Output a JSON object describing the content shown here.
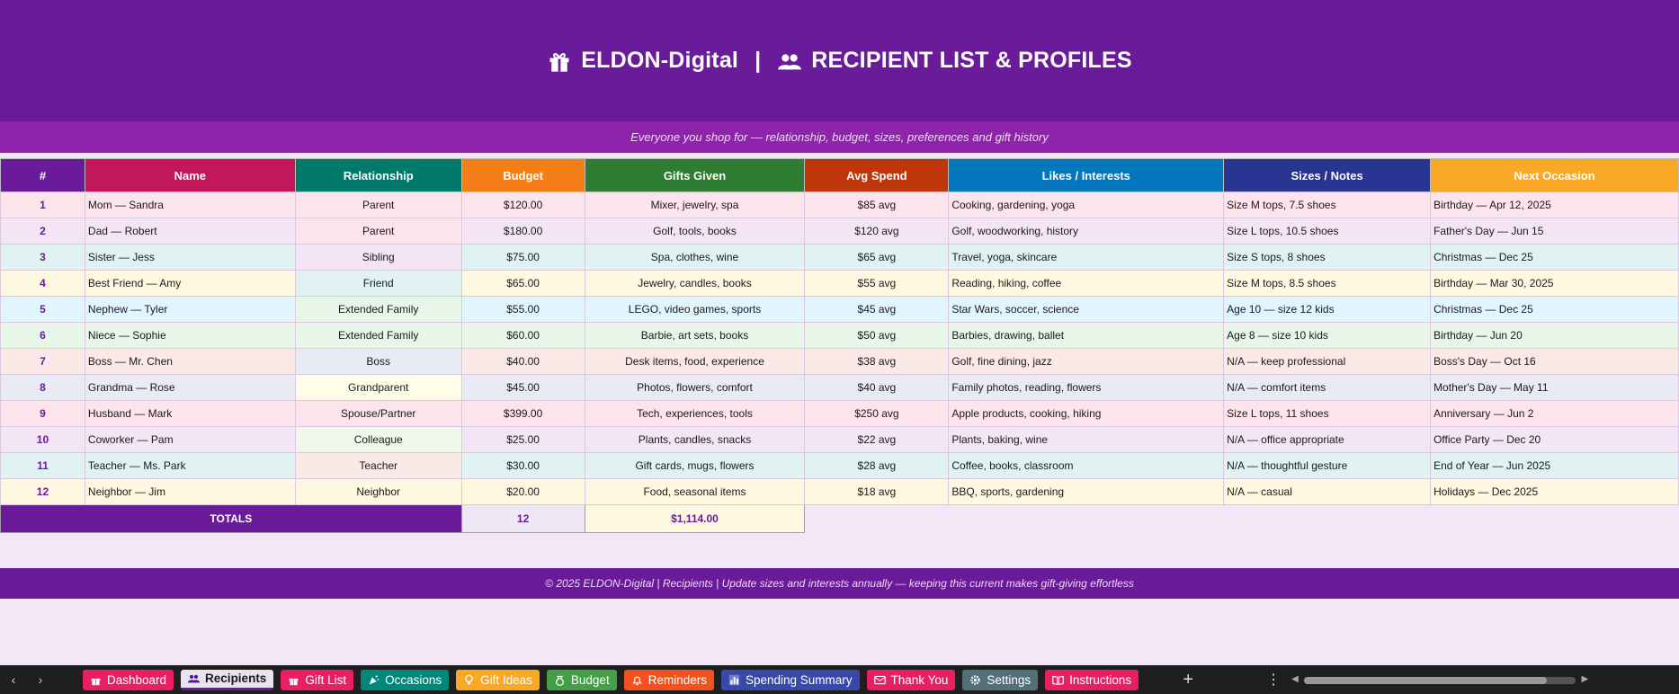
{
  "header": {
    "brand": "ELDON-Digital",
    "separator": "|",
    "title": "RECIPIENT LIST & PROFILES",
    "brand_icon": "gift-icon",
    "title_icon": "people-icon"
  },
  "subtitle": "Everyone you shop for — relationship, budget, sizes, preferences and gift history",
  "columns": [
    {
      "label": "#",
      "color": "#6a1b9a"
    },
    {
      "label": "Name",
      "color": "#c2185b"
    },
    {
      "label": "Relationship",
      "color": "#00796b"
    },
    {
      "label": "Budget",
      "color": "#f57f17"
    },
    {
      "label": "Gifts Given",
      "color": "#2e7d32"
    },
    {
      "label": "Avg Spend",
      "color": "#bf360c"
    },
    {
      "label": "Likes / Interests",
      "color": "#0277bd"
    },
    {
      "label": "Sizes / Notes",
      "color": "#283593"
    },
    {
      "label": "Next Occasion",
      "color": "#f9a825"
    }
  ],
  "rows": [
    {
      "num": "1",
      "name": "Mom — Sandra",
      "relationship": "Parent",
      "budget": "$120.00",
      "gifts": "Mixer, jewelry, spa",
      "avg": "$85 avg",
      "likes": "Cooking, gardening, yoga",
      "sizes": "Size M tops, 7.5 shoes",
      "occasion": "Birthday — Apr 12, 2025"
    },
    {
      "num": "2",
      "name": "Dad — Robert",
      "relationship": "Parent",
      "budget": "$180.00",
      "gifts": "Golf, tools, books",
      "avg": "$120 avg",
      "likes": "Golf, woodworking, history",
      "sizes": "Size L tops, 10.5 shoes",
      "occasion": "Father's Day — Jun 15"
    },
    {
      "num": "3",
      "name": "Sister — Jess",
      "relationship": "Sibling",
      "budget": "$75.00",
      "gifts": "Spa, clothes, wine",
      "avg": "$65 avg",
      "likes": "Travel, yoga, skincare",
      "sizes": "Size S tops, 8 shoes",
      "occasion": "Christmas — Dec 25"
    },
    {
      "num": "4",
      "name": "Best Friend — Amy",
      "relationship": "Friend",
      "budget": "$65.00",
      "gifts": "Jewelry, candles, books",
      "avg": "$55 avg",
      "likes": "Reading, hiking, coffee",
      "sizes": "Size M tops, 8.5 shoes",
      "occasion": "Birthday — Mar 30, 2025"
    },
    {
      "num": "5",
      "name": "Nephew — Tyler",
      "relationship": "Extended Family",
      "budget": "$55.00",
      "gifts": "LEGO, video games, sports",
      "avg": "$45 avg",
      "likes": "Star Wars, soccer, science",
      "sizes": "Age 10 — size 12 kids",
      "occasion": "Christmas — Dec 25"
    },
    {
      "num": "6",
      "name": "Niece — Sophie",
      "relationship": "Extended Family",
      "budget": "$60.00",
      "gifts": "Barbie, art sets, books",
      "avg": "$50 avg",
      "likes": "Barbies, drawing, ballet",
      "sizes": "Age 8 — size 10 kids",
      "occasion": "Birthday — Jun 20"
    },
    {
      "num": "7",
      "name": "Boss — Mr. Chen",
      "relationship": "Boss",
      "budget": "$40.00",
      "gifts": "Desk items, food, experience",
      "avg": "$38 avg",
      "likes": "Golf, fine dining, jazz",
      "sizes": "N/A — keep professional",
      "occasion": "Boss's Day — Oct 16"
    },
    {
      "num": "8",
      "name": "Grandma — Rose",
      "relationship": "Grandparent",
      "budget": "$45.00",
      "gifts": "Photos, flowers, comfort",
      "avg": "$40 avg",
      "likes": "Family photos, reading, flowers",
      "sizes": "N/A — comfort items",
      "occasion": "Mother's Day — May 11"
    },
    {
      "num": "9",
      "name": "Husband — Mark",
      "relationship": "Spouse/Partner",
      "budget": "$399.00",
      "gifts": "Tech, experiences, tools",
      "avg": "$250 avg",
      "likes": "Apple products, cooking, hiking",
      "sizes": "Size L tops, 11 shoes",
      "occasion": "Anniversary — Jun 2"
    },
    {
      "num": "10",
      "name": "Coworker — Pam",
      "relationship": "Colleague",
      "budget": "$25.00",
      "gifts": "Plants, candles, snacks",
      "avg": "$22 avg",
      "likes": "Plants, baking, wine",
      "sizes": "N/A — office appropriate",
      "occasion": "Office Party — Dec 20"
    },
    {
      "num": "11",
      "name": "Teacher — Ms. Park",
      "relationship": "Teacher",
      "budget": "$30.00",
      "gifts": "Gift cards, mugs, flowers",
      "avg": "$28 avg",
      "likes": "Coffee, books, classroom",
      "sizes": "N/A — thoughtful gesture",
      "occasion": "End of Year — Jun 2025"
    },
    {
      "num": "12",
      "name": "Neighbor — Jim",
      "relationship": "Neighbor",
      "budget": "$20.00",
      "gifts": "Food, seasonal items",
      "avg": "$18 avg",
      "likes": "BBQ, sports, gardening",
      "sizes": "N/A — casual",
      "occasion": "Holidays — Dec 2025"
    }
  ],
  "row_colors": [
    "#fce4ec",
    "#f3e5f5",
    "#e0f2f1",
    "#fff8e1",
    "#e1f5fe",
    "#e8f5e9",
    "#fbe9e7",
    "#e8eaf6",
    "#fce4ec",
    "#f3e5f5",
    "#e0f2f1",
    "#fff8e1"
  ],
  "relationship_colors": [
    "#fce4ec",
    "#fce4ec",
    "#f3e5f5",
    "#e0f2f1",
    "#e8f5e9",
    "#e8f5e9",
    "#e8eaf6",
    "#fffde7",
    "#fce4ec",
    "#f1f8e9",
    "#fbe9e7",
    "#fff8e1"
  ],
  "totals": {
    "label": "TOTALS",
    "count": "12",
    "sum": "$1,114.00"
  },
  "footer": "© 2025 ELDON-Digital | Recipients | Update sizes and interests annually — keeping this current makes gift-giving effortless",
  "tabs": [
    {
      "label": "Dashboard",
      "icon": "gift-icon",
      "color": "#e91e63"
    },
    {
      "label": "Recipients",
      "icon": "people-icon",
      "color": "#e8e3f0",
      "active": true
    },
    {
      "label": "Gift List",
      "icon": "gift-icon",
      "color": "#e91e63"
    },
    {
      "label": "Occasions",
      "icon": "party-icon",
      "color": "#00897b"
    },
    {
      "label": "Gift Ideas",
      "icon": "lightbulb-icon",
      "color": "#f9a825"
    },
    {
      "label": "Budget",
      "icon": "money-bag-icon",
      "color": "#43a047"
    },
    {
      "label": "Reminders",
      "icon": "bell-icon",
      "color": "#f4511e"
    },
    {
      "label": "Spending Summary",
      "icon": "bar-chart-icon",
      "color": "#3949ab"
    },
    {
      "label": "Thank You",
      "icon": "card-icon",
      "color": "#e91e63"
    },
    {
      "label": "Settings",
      "icon": "gear-icon",
      "color": "#546e7a"
    },
    {
      "label": "Instructions",
      "icon": "book-icon",
      "color": "#e91e63"
    }
  ],
  "controls": {
    "prev": "‹",
    "next": "›",
    "add": "+",
    "more": "⋮"
  }
}
